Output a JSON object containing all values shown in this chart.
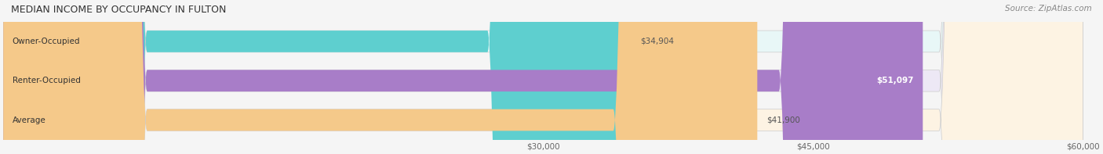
{
  "title": "MEDIAN INCOME BY OCCUPANCY IN FULTON",
  "source_text": "Source: ZipAtlas.com",
  "categories": [
    "Owner-Occupied",
    "Renter-Occupied",
    "Average"
  ],
  "values": [
    34904,
    51097,
    41900
  ],
  "bar_colors": [
    "#5ecfcf",
    "#a87dc8",
    "#f5c98a"
  ],
  "bar_bg_colors": [
    "#e8f7f7",
    "#ede8f5",
    "#fdf3e3"
  ],
  "value_labels": [
    "$34,904",
    "$51,097",
    "$41,900"
  ],
  "label_inside": [
    false,
    true,
    false
  ],
  "xlim": [
    0,
    60000
  ],
  "xticks": [
    30000,
    45000,
    60000
  ],
  "xtick_labels": [
    "$30,000",
    "$45,000",
    "$60,000"
  ],
  "figsize": [
    14.06,
    1.97
  ],
  "dpi": 100,
  "bar_height": 0.55,
  "background_color": "#f5f5f5"
}
